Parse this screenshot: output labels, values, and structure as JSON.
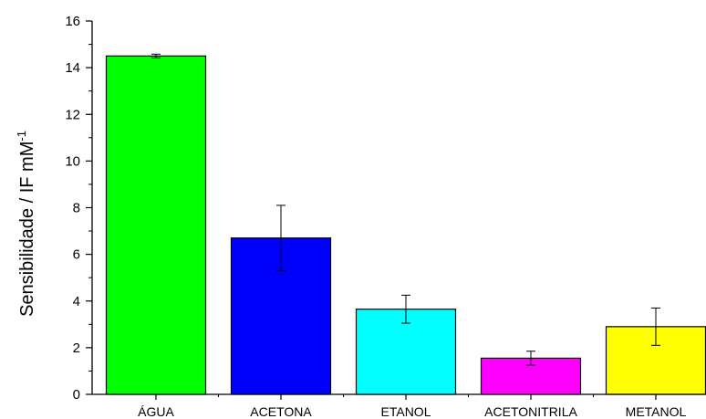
{
  "chart_data": {
    "type": "bar",
    "title": "",
    "xlabel": "",
    "ylabel": "Sensibilidade / IF mM",
    "ylabel_superscript": "-1",
    "categories": [
      "ÁGUA",
      "ACETONA",
      "ETANOL",
      "ACETONITRILA",
      "METANOL"
    ],
    "values": [
      14.5,
      6.7,
      3.65,
      1.55,
      2.9
    ],
    "errors": [
      0.08,
      1.4,
      0.6,
      0.3,
      0.8
    ],
    "colors": [
      "#00ff00",
      "#0000ff",
      "#00ffff",
      "#ff00ff",
      "#ffff00"
    ],
    "ylim": [
      0,
      16
    ],
    "yticks": [
      0,
      2,
      4,
      6,
      8,
      10,
      12,
      14,
      16
    ],
    "grid": false
  }
}
